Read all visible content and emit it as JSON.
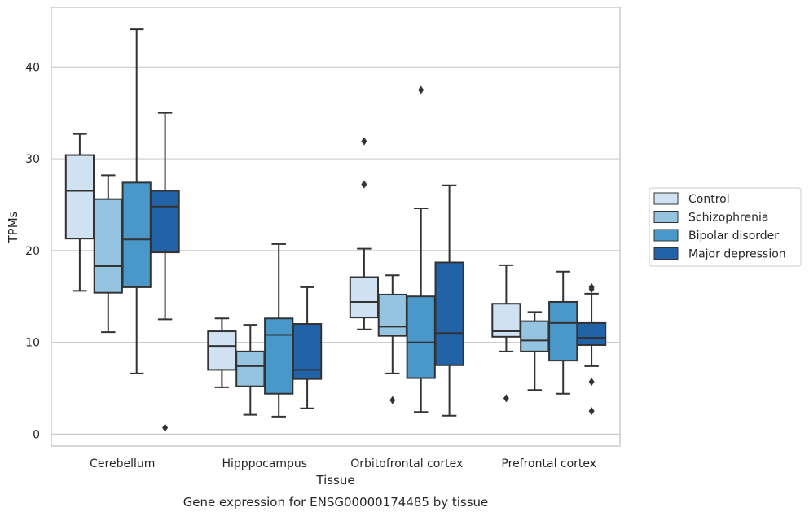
{
  "chart_data": {
    "type": "box",
    "xlabel": "Tissue",
    "ylabel": "TPMs",
    "caption": "Gene expression for ENSG00000174485 by tissue",
    "ylim": [
      -1.3,
      46.5
    ],
    "yticks": [
      0,
      10,
      20,
      30,
      40
    ],
    "grid": "horizontal",
    "legend_position": "right",
    "categories": [
      "Cerebellum",
      "Hipppocampus",
      "Orbitofrontal cortex",
      "Prefrontal cortex"
    ],
    "series": [
      {
        "name": "Control",
        "color": "#d0e1f2",
        "boxes": [
          {
            "whislo": 15.6,
            "q1": 21.3,
            "med": 26.5,
            "q3": 30.4,
            "whishi": 32.7,
            "fliers": []
          },
          {
            "whislo": 5.1,
            "q1": 7.0,
            "med": 9.6,
            "q3": 11.2,
            "whishi": 12.6,
            "fliers": []
          },
          {
            "whislo": 11.4,
            "q1": 12.7,
            "med": 14.4,
            "q3": 17.1,
            "whishi": 20.2,
            "fliers": [
              27.2,
              31.9
            ]
          },
          {
            "whislo": 9.0,
            "q1": 10.6,
            "med": 11.2,
            "q3": 14.2,
            "whishi": 18.4,
            "fliers": [
              3.9
            ]
          }
        ]
      },
      {
        "name": "Schizophrenia",
        "color": "#94c4df",
        "boxes": [
          {
            "whislo": 11.1,
            "q1": 15.4,
            "med": 18.3,
            "q3": 25.6,
            "whishi": 28.2,
            "fliers": []
          },
          {
            "whislo": 2.1,
            "q1": 5.2,
            "med": 7.4,
            "q3": 9.0,
            "whishi": 11.9,
            "fliers": []
          },
          {
            "whislo": 6.6,
            "q1": 10.7,
            "med": 11.7,
            "q3": 15.2,
            "whishi": 17.3,
            "fliers": [
              3.7
            ]
          },
          {
            "whislo": 4.8,
            "q1": 9.0,
            "med": 10.2,
            "q3": 12.3,
            "whishi": 13.3,
            "fliers": []
          }
        ]
      },
      {
        "name": "Bipolar disorder",
        "color": "#4a98c9",
        "boxes": [
          {
            "whislo": 6.6,
            "q1": 16.0,
            "med": 21.2,
            "q3": 27.4,
            "whishi": 44.1,
            "fliers": []
          },
          {
            "whislo": 1.9,
            "q1": 4.4,
            "med": 10.8,
            "q3": 12.6,
            "whishi": 20.7,
            "fliers": []
          },
          {
            "whislo": 2.4,
            "q1": 6.1,
            "med": 10.0,
            "q3": 15.0,
            "whishi": 24.6,
            "fliers": [
              37.5
            ]
          },
          {
            "whislo": 4.4,
            "q1": 8.0,
            "med": 12.1,
            "q3": 14.4,
            "whishi": 17.7,
            "fliers": []
          }
        ]
      },
      {
        "name": "Major depression",
        "color": "#2263a8",
        "boxes": [
          {
            "whislo": 12.5,
            "q1": 19.8,
            "med": 24.8,
            "q3": 26.5,
            "whishi": 35.0,
            "fliers": [
              0.7
            ]
          },
          {
            "whislo": 2.8,
            "q1": 6.0,
            "med": 7.0,
            "q3": 12.0,
            "whishi": 16.0,
            "fliers": []
          },
          {
            "whislo": 2.0,
            "q1": 7.5,
            "med": 11.0,
            "q3": 18.7,
            "whishi": 27.1,
            "fliers": []
          },
          {
            "whislo": 7.4,
            "q1": 9.7,
            "med": 10.5,
            "q3": 12.1,
            "whishi": 15.3,
            "fliers": [
              2.5,
              5.7,
              15.8,
              16.0
            ]
          }
        ]
      }
    ]
  }
}
